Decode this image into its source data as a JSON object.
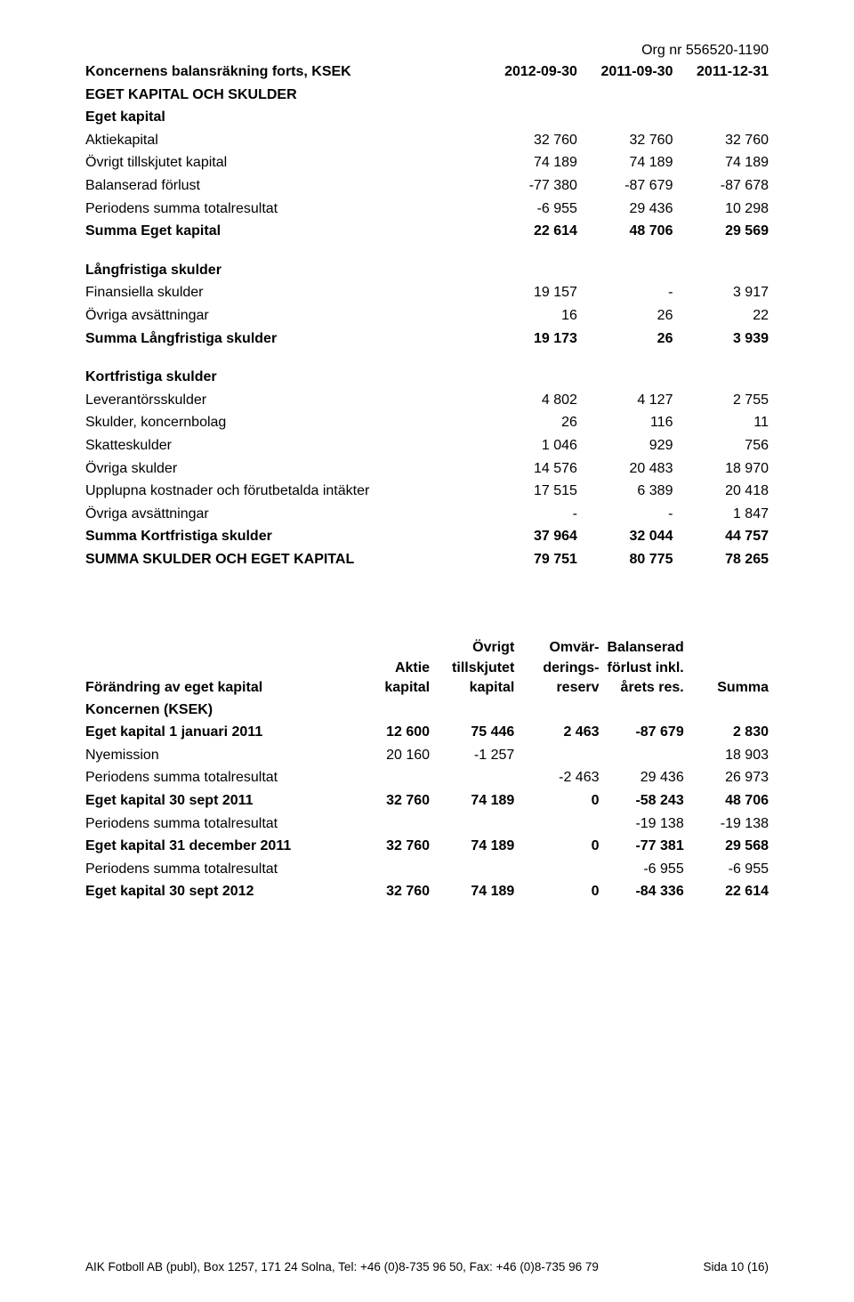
{
  "org_line": "Org nr 556520-1190",
  "t1": {
    "title": "Koncernens balansräkning forts, KSEK",
    "cols": [
      "2012-09-30",
      "2011-09-30",
      "2011-12-31"
    ],
    "h1": "EGET KAPITAL OCH SKULDER",
    "h2": "Eget kapital",
    "r_aktie": {
      "l": "Aktiekapital",
      "v": [
        "32 760",
        "32 760",
        "32 760"
      ]
    },
    "r_ovt": {
      "l": "Övrigt tillskjutet kapital",
      "v": [
        "74 189",
        "74 189",
        "74 189"
      ]
    },
    "r_bal": {
      "l": "Balanserad förlust",
      "v": [
        "-77 380",
        "-87 679",
        "-87 678"
      ]
    },
    "r_ptot": {
      "l": "Periodens summa totalresultat",
      "v": [
        "-6 955",
        "29 436",
        "10 298"
      ]
    },
    "r_sek": {
      "l": "Summa Eget kapital",
      "v": [
        "22 614",
        "48 706",
        "29 569"
      ]
    },
    "h3": "Långfristiga skulder",
    "r_fin": {
      "l": "Finansiella skulder",
      "v": [
        "19 157",
        "-",
        "3 917"
      ]
    },
    "r_oav": {
      "l": "Övriga avsättningar",
      "v": [
        "16",
        "26",
        "22"
      ]
    },
    "r_slang": {
      "l": "Summa Långfristiga skulder",
      "v": [
        "19 173",
        "26",
        "3 939"
      ]
    },
    "h4": "Kortfristiga skulder",
    "r_lev": {
      "l": "Leverantörsskulder",
      "v": [
        "4 802",
        "4 127",
        "2 755"
      ]
    },
    "r_konc": {
      "l": "Skulder, koncernbolag",
      "v": [
        "26",
        "116",
        "11"
      ]
    },
    "r_skatt": {
      "l": "Skatteskulder",
      "v": [
        "1 046",
        "929",
        "756"
      ]
    },
    "r_osku": {
      "l": "Övriga skulder",
      "v": [
        "14 576",
        "20 483",
        "18 970"
      ]
    },
    "r_upp": {
      "l": "Upplupna kostnader och förutbetalda intäkter",
      "v": [
        "17 515",
        "6 389",
        "20 418"
      ]
    },
    "r_oav2": {
      "l": "Övriga avsättningar",
      "v": [
        "-",
        "-",
        "1 847"
      ]
    },
    "r_skort": {
      "l": "Summa Kortfristiga skulder",
      "v": [
        "37 964",
        "32 044",
        "44 757"
      ]
    },
    "r_total": {
      "l": "SUMMA SKULDER OCH EGET KAPITAL",
      "v": [
        "79 751",
        "80 775",
        "78 265"
      ]
    }
  },
  "t2": {
    "hdr": {
      "row1": [
        "",
        "",
        "Övrigt",
        "Omvär-",
        "Balanserad",
        ""
      ],
      "row2": [
        "",
        "Aktie",
        "tillskjutet",
        "derings-",
        "förlust inkl.",
        ""
      ],
      "row3": [
        "Förändring av eget kapital",
        "kapital",
        "kapital",
        "reserv",
        "årets res.",
        "Summa"
      ]
    },
    "sub": "Koncernen (KSEK)",
    "rows": [
      {
        "l": "Eget kapital 1 januari 2011",
        "bold": true,
        "v": [
          "12 600",
          "75 446",
          "2 463",
          "-87 679",
          "2 830"
        ]
      },
      {
        "l": "Nyemission",
        "bold": false,
        "v": [
          "20 160",
          "-1 257",
          "",
          "",
          "18 903"
        ]
      },
      {
        "l": "Periodens summa totalresultat",
        "bold": false,
        "v": [
          "",
          "",
          "-2 463",
          "29 436",
          "26 973"
        ]
      },
      {
        "l": "Eget kapital 30 sept 2011",
        "bold": true,
        "v": [
          "32 760",
          "74 189",
          "0",
          "-58 243",
          "48 706"
        ]
      },
      {
        "l": "Periodens summa totalresultat",
        "bold": false,
        "v": [
          "",
          "",
          "",
          "-19 138",
          "-19 138"
        ]
      },
      {
        "l": "Eget kapital 31 december 2011",
        "bold": true,
        "v": [
          "32 760",
          "74 189",
          "0",
          "-77 381",
          "29 568"
        ]
      },
      {
        "l": "Periodens summa totalresultat",
        "bold": false,
        "v": [
          "",
          "",
          "",
          "-6 955",
          "-6 955"
        ]
      },
      {
        "l": "Eget kapital 30 sept 2012",
        "bold": true,
        "v": [
          "32 760",
          "74 189",
          "0",
          "-84 336",
          "22 614"
        ]
      }
    ]
  },
  "footer": {
    "left": "AIK Fotboll AB (publ), Box 1257, 171 24 Solna, Tel: +46 (0)8-735 96 50, Fax: +46 (0)8-735 96 79",
    "right": "Sida 10 (16)"
  }
}
